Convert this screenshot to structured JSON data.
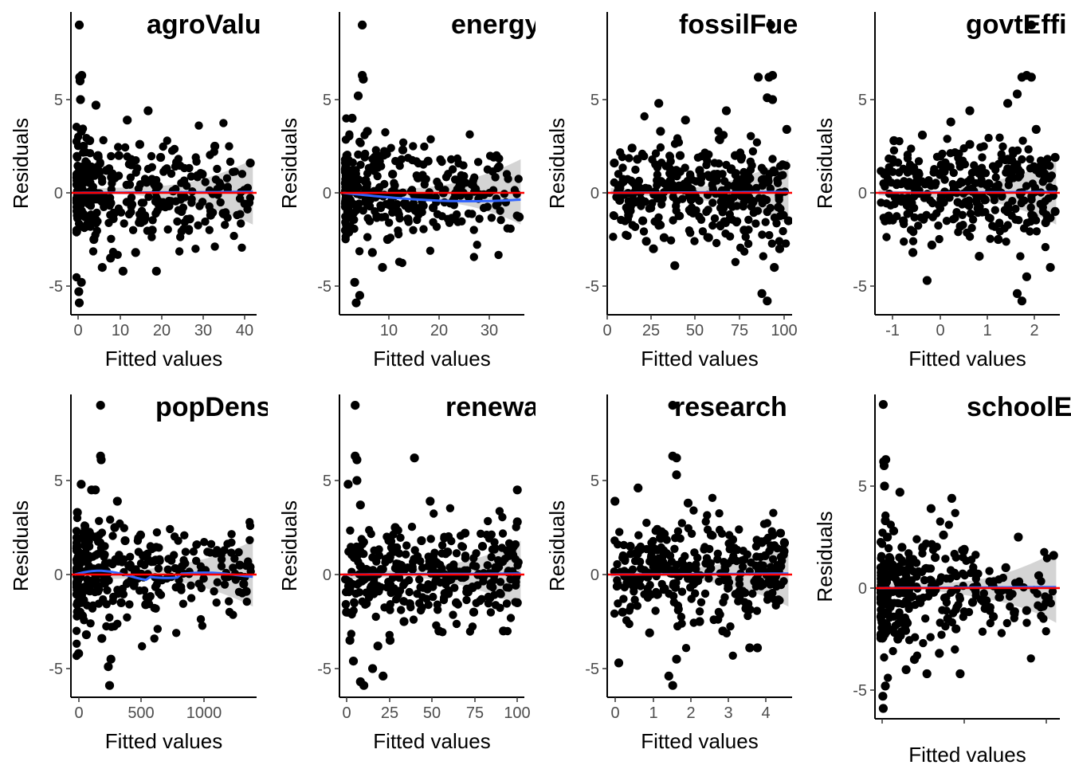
{
  "chart_data": [
    {
      "type": "scatter",
      "title": "agroValu",
      "xlabel": "Fitted values",
      "ylabel": "Residuals",
      "xlim": [
        -1.5,
        43
      ],
      "ylim": [
        -6.5,
        9.5
      ],
      "xticks": [
        "0",
        "10",
        "20",
        "30",
        "40"
      ],
      "yticks": [
        "-5",
        "0",
        "5"
      ],
      "points": [
        [
          0.5,
          9.0
        ],
        [
          0.6,
          6.2
        ],
        [
          0.7,
          6.0
        ],
        [
          1.1,
          6.3
        ],
        [
          0.8,
          5.0
        ],
        [
          1.0,
          3.3
        ],
        [
          1.5,
          2.5
        ],
        [
          0.4,
          -5.3
        ],
        [
          0.5,
          -5.9
        ],
        [
          1,
          -4.8
        ],
        [
          2,
          1.5
        ],
        [
          3,
          2.8
        ],
        [
          4,
          -2.5
        ],
        [
          4.5,
          4.7
        ],
        [
          5,
          2.0
        ],
        [
          6,
          -4.0
        ],
        [
          7,
          1.2
        ],
        [
          8,
          -3.5
        ],
        [
          9,
          0.8
        ],
        [
          10,
          2.0
        ],
        [
          11,
          -4.2
        ],
        [
          12,
          3.9
        ],
        [
          13,
          1.5
        ],
        [
          14,
          -3.2
        ],
        [
          15,
          2.6
        ],
        [
          16,
          -1.5
        ],
        [
          17,
          4.4
        ],
        [
          18,
          -2.0
        ],
        [
          19,
          -4.2
        ],
        [
          20,
          1.9
        ],
        [
          22,
          -0.7
        ],
        [
          23,
          0.1
        ],
        [
          25,
          -1.0
        ],
        [
          27,
          -1.4
        ],
        [
          30,
          1.0
        ],
        [
          32,
          -1.2
        ],
        [
          33,
          2.5
        ],
        [
          35,
          -1.1
        ],
        [
          41.5,
          1.6
        ]
      ]
    },
    {
      "type": "scatter",
      "title": "energy",
      "xlabel": "Fitted values",
      "ylabel": "Residuals",
      "xlim": [
        -0.5,
        36
      ],
      "ylim": [
        -6.5,
        9.5
      ],
      "xticks": [
        "10",
        "20",
        "30"
      ],
      "yticks": [
        "-5",
        "0",
        "5"
      ],
      "points": [
        [
          4.0,
          9.0
        ],
        [
          4.0,
          6.3
        ],
        [
          4.2,
          6.1
        ],
        [
          3.2,
          5.2
        ],
        [
          2.0,
          4.0
        ],
        [
          2.5,
          -4.8
        ],
        [
          2.8,
          -5.9
        ],
        [
          3.5,
          -5.5
        ],
        [
          5,
          3.3
        ],
        [
          6,
          -3.2
        ],
        [
          7,
          2.0
        ],
        [
          8,
          -4.0
        ],
        [
          9,
          -2.5
        ],
        [
          10,
          1.0
        ],
        [
          11,
          -1.0
        ],
        [
          12,
          2.3
        ],
        [
          13,
          -1.4
        ],
        [
          15,
          0.8
        ],
        [
          16,
          -0.2
        ],
        [
          17,
          1.7
        ],
        [
          18,
          -0.8
        ],
        [
          20,
          0.0
        ],
        [
          22,
          -0.4
        ],
        [
          25,
          -0.2
        ],
        [
          28,
          -0.1
        ],
        [
          31,
          1.4
        ],
        [
          35,
          -1.3
        ]
      ]
    },
    {
      "type": "scatter",
      "title": "fossilFue",
      "xlabel": "Fitted values",
      "ylabel": "Residuals",
      "xlim": [
        -2,
        102
      ],
      "ylim": [
        -6.5,
        9.5
      ],
      "xticks": [
        "0",
        "25",
        "50",
        "75",
        "100"
      ],
      "yticks": [
        "-5",
        "0",
        "5"
      ],
      "points": [
        [
          90,
          9.0
        ],
        [
          83,
          6.2
        ],
        [
          89,
          6.2
        ],
        [
          91,
          6.3
        ],
        [
          88,
          5.1
        ],
        [
          91,
          5.0
        ],
        [
          2,
          1.6
        ],
        [
          5,
          -0.4
        ],
        [
          7,
          0.6
        ],
        [
          10,
          -1.2
        ],
        [
          12,
          2.4
        ],
        [
          15,
          1.8
        ],
        [
          18,
          -1.5
        ],
        [
          20,
          -2.6
        ],
        [
          24,
          -3.0
        ],
        [
          27,
          4.8
        ],
        [
          28,
          3.3
        ],
        [
          30,
          -2.4
        ],
        [
          33,
          0.3
        ],
        [
          36,
          -3.9
        ],
        [
          39,
          2.0
        ],
        [
          42,
          3.9
        ],
        [
          45,
          -1.0
        ],
        [
          50,
          1.2
        ],
        [
          55,
          -2.4
        ],
        [
          60,
          1.0
        ],
        [
          65,
          4.4
        ],
        [
          70,
          2.0
        ],
        [
          75,
          -2.0
        ],
        [
          80,
          -0.5
        ],
        [
          85,
          -5.4
        ],
        [
          88,
          -5.8
        ],
        [
          92,
          -4.0
        ],
        [
          95,
          -3.0
        ],
        [
          99,
          3.4
        ],
        [
          100,
          -1.5
        ]
      ]
    },
    {
      "type": "scatter",
      "title": "govtEffi",
      "xlabel": "Fitted values",
      "ylabel": "Residuals",
      "xlim": [
        -1.4,
        2.5
      ],
      "ylim": [
        -6.5,
        9.5
      ],
      "xticks": [
        "-1",
        "0",
        "1",
        "2"
      ],
      "yticks": [
        "-5",
        "0",
        "5"
      ],
      "points": [
        [
          1.9,
          9.0
        ],
        [
          1.7,
          6.2
        ],
        [
          1.8,
          6.3
        ],
        [
          1.9,
          6.2
        ],
        [
          1.6,
          5.3
        ],
        [
          1.4,
          4.8
        ],
        [
          -1.2,
          1.0
        ],
        [
          -1.0,
          2.8
        ],
        [
          -0.8,
          -1.5
        ],
        [
          -0.6,
          -3.2
        ],
        [
          -0.4,
          3.1
        ],
        [
          -0.2,
          -2.8
        ],
        [
          0.0,
          1.5
        ],
        [
          -0.3,
          -4.7
        ],
        [
          0.2,
          3.8
        ],
        [
          0.4,
          -1.8
        ],
        [
          0.6,
          2.6
        ],
        [
          0.8,
          -3.4
        ],
        [
          0.6,
          4.4
        ],
        [
          1.0,
          0.5
        ],
        [
          1.2,
          -2.5
        ],
        [
          1.4,
          1.8
        ],
        [
          1.6,
          -5.4
        ],
        [
          1.7,
          -5.8
        ],
        [
          1.8,
          -4.5
        ],
        [
          2.0,
          3.4
        ],
        [
          2.2,
          -1.6
        ],
        [
          2.3,
          -4.0
        ],
        [
          2.4,
          1.9
        ],
        [
          2.4,
          -1.0
        ]
      ]
    },
    {
      "type": "scatter",
      "title": "popDens",
      "xlabel": "Fitted values",
      "ylabel": "Residuals",
      "xlim": [
        -40,
        1400
      ],
      "ylim": [
        -6.5,
        9.5
      ],
      "xticks": [
        "0",
        "500",
        "1000"
      ],
      "yticks": [
        "-5",
        "0",
        "5"
      ],
      "points": [
        [
          190,
          9.0
        ],
        [
          190,
          6.3
        ],
        [
          195,
          6.1
        ],
        [
          40,
          4.8
        ],
        [
          120,
          4.5
        ],
        [
          150,
          4.5
        ],
        [
          10,
          3.3
        ],
        [
          20,
          -4.2
        ],
        [
          50,
          -2.2
        ],
        [
          80,
          -3.2
        ],
        [
          100,
          1.5
        ],
        [
          150,
          2.0
        ],
        [
          200,
          -3.4
        ],
        [
          250,
          -4.9
        ],
        [
          260,
          -5.9
        ],
        [
          270,
          -4.5
        ],
        [
          300,
          2.5
        ],
        [
          320,
          3.9
        ],
        [
          350,
          -1.5
        ],
        [
          380,
          1.8
        ],
        [
          420,
          0.5
        ],
        [
          450,
          -0.5
        ],
        [
          500,
          2.1
        ],
        [
          520,
          1.0
        ],
        [
          540,
          -1.6
        ],
        [
          600,
          0.7
        ],
        [
          1270,
          0.5
        ],
        [
          1300,
          -0.5
        ],
        [
          1320,
          -0.9
        ],
        [
          1350,
          0.4
        ]
      ]
    },
    {
      "type": "scatter",
      "title": "renewa",
      "xlabel": "Fitted values",
      "ylabel": "Residuals",
      "xlim": [
        -2,
        104
      ],
      "ylim": [
        -6.5,
        9.5
      ],
      "xticks": [
        "0",
        "25",
        "50",
        "75",
        "100"
      ],
      "yticks": [
        "-5",
        "0",
        "5"
      ],
      "points": [
        [
          7,
          9.0
        ],
        [
          7,
          6.3
        ],
        [
          8,
          6.1
        ],
        [
          3,
          4.8
        ],
        [
          8,
          5.0
        ],
        [
          10,
          3.7
        ],
        [
          2,
          -2.0
        ],
        [
          4,
          -3.5
        ],
        [
          6,
          -4.6
        ],
        [
          10,
          -5.7
        ],
        [
          12,
          -5.9
        ],
        [
          17,
          -5.0
        ],
        [
          20,
          -3.8
        ],
        [
          23,
          -5.4
        ],
        [
          27,
          -3.5
        ],
        [
          30,
          2.5
        ],
        [
          35,
          -2.5
        ],
        [
          41,
          6.2
        ],
        [
          45,
          1.8
        ],
        [
          50,
          3.9
        ],
        [
          55,
          -3.0
        ],
        [
          60,
          1.2
        ],
        [
          65,
          -1.5
        ],
        [
          70,
          2.2
        ],
        [
          75,
          -2.0
        ],
        [
          80,
          1.5
        ],
        [
          85,
          -0.5
        ],
        [
          90,
          -1.0
        ],
        [
          92,
          -3.0
        ],
        [
          95,
          1.0
        ],
        [
          100,
          4.5
        ],
        [
          100,
          2.8
        ],
        [
          100,
          -1.5
        ]
      ]
    },
    {
      "type": "scatter",
      "title": "research",
      "xlabel": "Fitted values",
      "ylabel": "Residuals",
      "xlim": [
        -0.1,
        4.7
      ],
      "ylim": [
        -6.5,
        9.5
      ],
      "xticks": [
        "0",
        "1",
        "2",
        "3",
        "4"
      ],
      "yticks": [
        "-5",
        "0",
        "5"
      ],
      "points": [
        [
          1.6,
          9.0
        ],
        [
          1.6,
          6.3
        ],
        [
          1.7,
          6.2
        ],
        [
          1.7,
          5.3
        ],
        [
          0.1,
          3.9
        ],
        [
          0.2,
          -4.7
        ],
        [
          0.3,
          -2.0
        ],
        [
          0.5,
          1.5
        ],
        [
          0.7,
          4.6
        ],
        [
          1.0,
          -3.1
        ],
        [
          1.2,
          2.4
        ],
        [
          1.5,
          -5.4
        ],
        [
          1.6,
          -5.9
        ],
        [
          1.7,
          -4.5
        ],
        [
          2.0,
          3.8
        ],
        [
          2.3,
          -2.5
        ],
        [
          2.6,
          2.1
        ],
        [
          2.9,
          -3.0
        ],
        [
          3.2,
          1.4
        ],
        [
          3.5,
          -1.8
        ],
        [
          3.6,
          -3.9
        ],
        [
          3.8,
          -3.9
        ],
        [
          4.0,
          1.0
        ],
        [
          4.2,
          2.1
        ],
        [
          4.4,
          2.2
        ],
        [
          4.5,
          1.7
        ]
      ]
    },
    {
      "type": "scatter",
      "title": "schoolE",
      "xlabel": "Fitted values",
      "ylabel": "Residuals",
      "xlim": [
        -1.5,
        43
      ],
      "ylim": [
        -6.5,
        9.5
      ],
      "xticks": [
        "",
        "",
        "",
        ""
      ],
      "yticks": [
        "-5",
        "0",
        "5"
      ],
      "points": [
        [
          0.5,
          9.0
        ],
        [
          0.6,
          6.2
        ],
        [
          0.7,
          6.0
        ],
        [
          1.1,
          6.3
        ],
        [
          0.8,
          5.0
        ],
        [
          1.0,
          3.3
        ],
        [
          1.5,
          2.5
        ],
        [
          0.4,
          -5.3
        ],
        [
          0.5,
          -5.9
        ],
        [
          1,
          -4.8
        ],
        [
          2,
          1.5
        ],
        [
          3,
          2.8
        ],
        [
          4,
          -2.5
        ],
        [
          4.5,
          4.7
        ],
        [
          5,
          2.0
        ],
        [
          6,
          -4.0
        ],
        [
          7,
          1.2
        ],
        [
          8,
          -3.5
        ],
        [
          9,
          0.8
        ],
        [
          10,
          2.0
        ],
        [
          11,
          -4.2
        ],
        [
          12,
          3.9
        ],
        [
          13,
          1.5
        ],
        [
          14,
          -3.2
        ],
        [
          15,
          2.6
        ],
        [
          16,
          -1.5
        ],
        [
          17,
          4.4
        ],
        [
          18,
          -2.0
        ],
        [
          19,
          -4.2
        ],
        [
          20,
          1.9
        ],
        [
          22,
          -0.7
        ],
        [
          23,
          0.1
        ],
        [
          25,
          -1.0
        ],
        [
          27,
          -1.4
        ],
        [
          30,
          1.0
        ],
        [
          32,
          -1.2
        ],
        [
          33,
          2.5
        ],
        [
          35,
          -1.1
        ],
        [
          41.5,
          1.6
        ]
      ]
    }
  ],
  "colors": {
    "points": "#000000",
    "smooth": "#3366FF",
    "ribbon": "#cccccc",
    "zero_line": "#ff0000"
  }
}
